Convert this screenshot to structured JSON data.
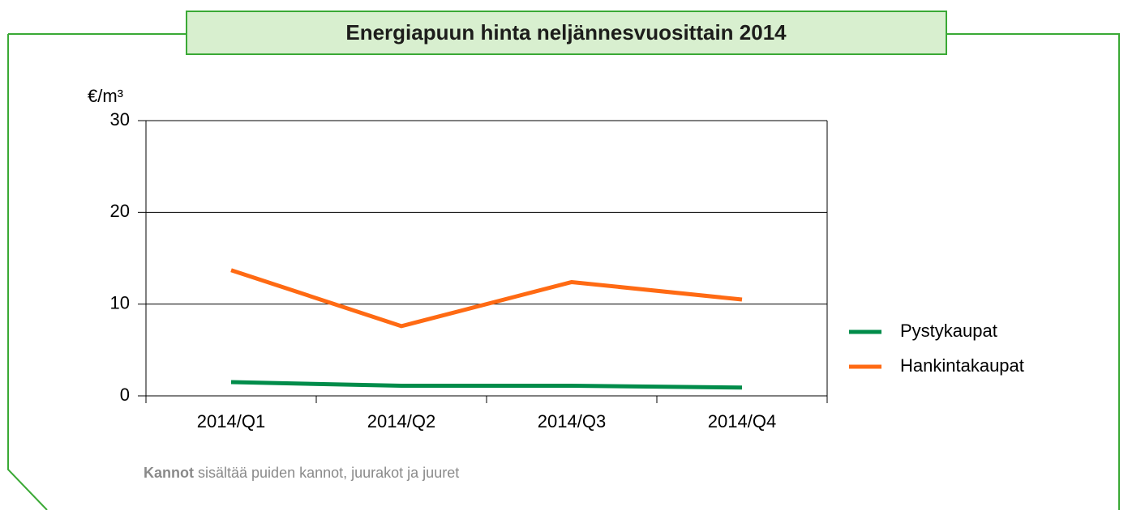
{
  "chart_data": {
    "type": "line",
    "title": "Energiapuun hinta neljännesvuosittain 2014",
    "ylabel": "€/m³",
    "categories": [
      "2014/Q1",
      "2014/Q2",
      "2014/Q3",
      "2014/Q4"
    ],
    "series": [
      {
        "name": "Pystykaupat",
        "color": "#008c4a",
        "values": [
          1.5,
          1.1,
          1.1,
          0.9
        ]
      },
      {
        "name": "Hankintakaupat",
        "color": "#ff6a13",
        "values": [
          13.7,
          7.6,
          12.4,
          10.5
        ]
      }
    ],
    "ylim": [
      0,
      30
    ],
    "yticks": [
      0,
      10,
      20,
      30
    ],
    "grid": true,
    "legend": "right",
    "note": {
      "bold": "Kannot",
      "text": " sisältää puiden kannot, juurakot ja juuret"
    }
  }
}
